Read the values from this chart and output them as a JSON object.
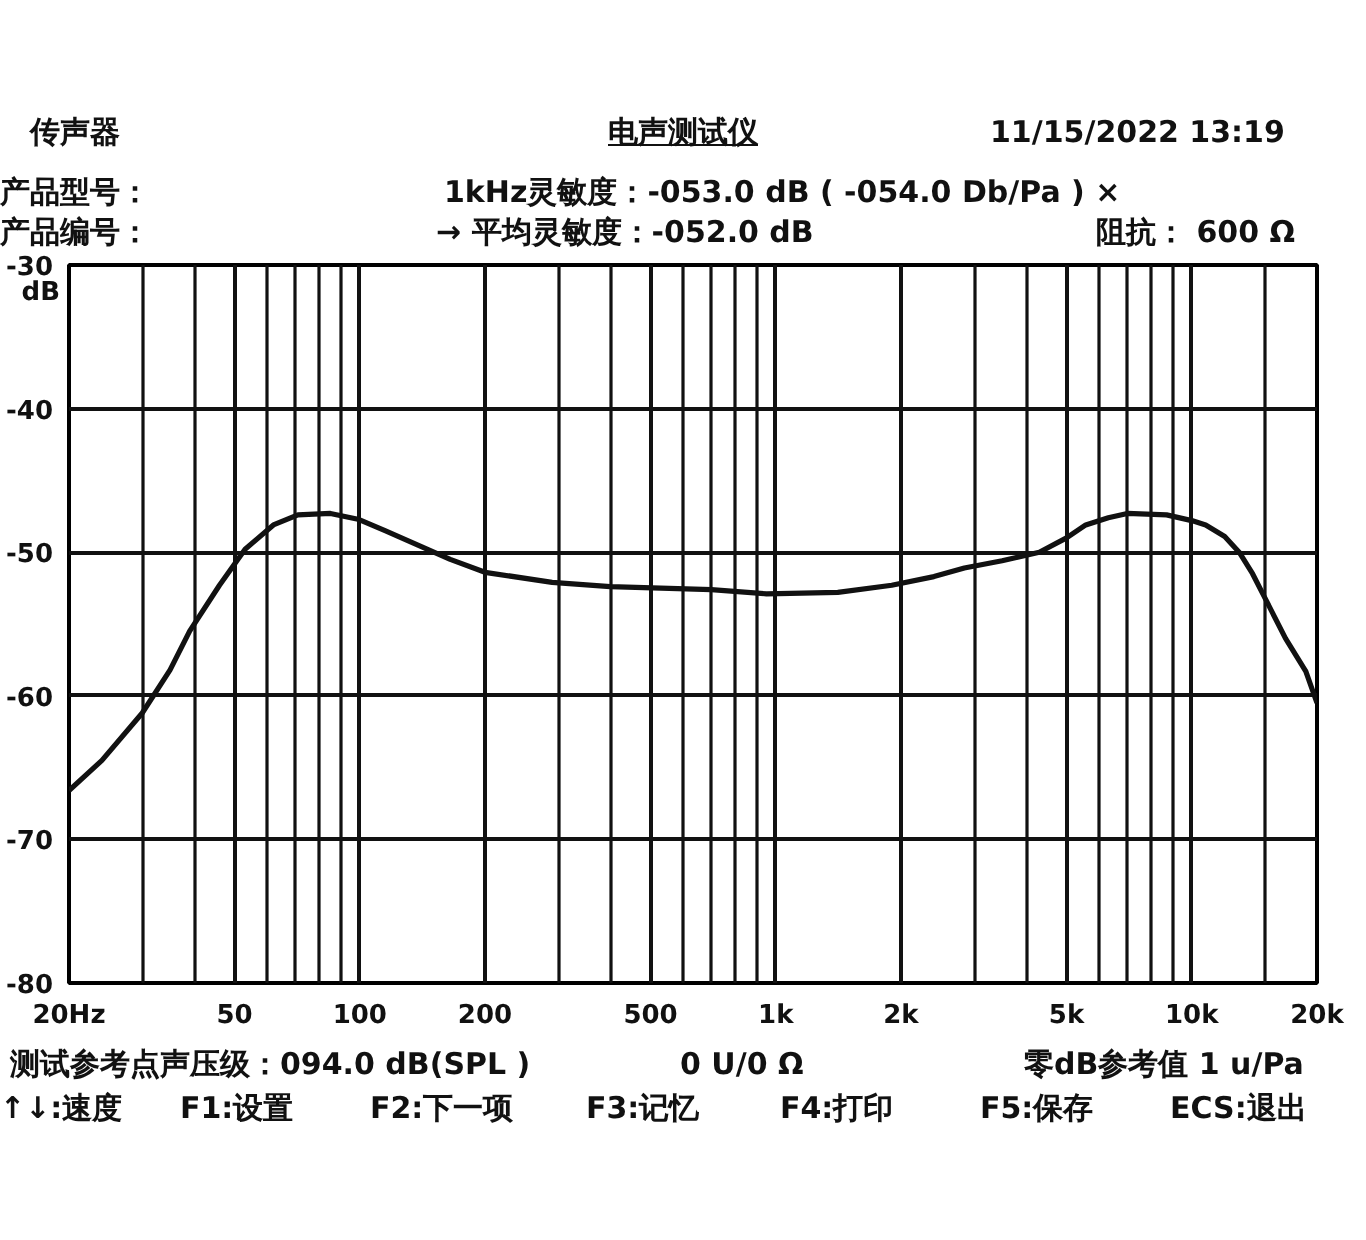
{
  "chart_data": {
    "type": "line",
    "title": "电声测试仪",
    "ylabel": "dB",
    "annotations": [
      "传声器",
      "11/15/2022  13:19",
      "产品型号：",
      "1kHz灵敏度：-053.0 dB ( -054.0 Db/Pa ) ×",
      "产品编号：",
      "→ 平均灵敏度：-052.0 dB",
      "阻抗： 600 Ω",
      "测试参考点声压级：094.0 dB(SPL )",
      "0 U/0 Ω",
      "零dB参考值 1 u/Pa",
      "↑↓:速度",
      "F1:设置",
      "F2:下一项",
      "F3:记忆",
      "F4:打印",
      "F5:保存",
      "ECS:退出"
    ],
    "x": [
      20,
      24,
      30,
      35,
      39,
      46,
      53,
      62,
      71,
      85,
      99,
      115,
      138,
      165,
      200,
      290,
      400,
      700,
      950,
      1410,
      1900,
      2400,
      2840,
      3500,
      4300,
      5000,
      5560,
      6300,
      7000,
      8700,
      10000,
      10800,
      12000,
      13000,
      14000,
      15000,
      16800,
      18800,
      20000
    ],
    "series": [
      {
        "color": "#111111",
        "values": [
          -66.6,
          -64.5,
          -61.2,
          -58.2,
          -55.5,
          -52.3,
          -49.8,
          -48.1,
          -47.4,
          -47.3,
          -47.7,
          -48.5,
          -49.5,
          -50.5,
          -51.4,
          -52.1,
          -52.4,
          -52.6,
          -52.9,
          -52.8,
          -52.3,
          -51.7,
          -51.1,
          -50.6,
          -50.0,
          -49.0,
          -48.1,
          -47.6,
          -47.3,
          -47.4,
          -47.8,
          -48.1,
          -48.9,
          -50.0,
          -51.5,
          -53.2,
          -56.0,
          -58.3,
          -60.5
        ]
      }
    ],
    "xlim": [
      20,
      20000
    ],
    "ylim": [
      -80,
      -30
    ],
    "xticks": [
      {
        "value": 20,
        "label": "20Hz"
      },
      {
        "value": 30,
        "label": null
      },
      {
        "value": 40,
        "label": null
      },
      50,
      {
        "value": 60,
        "label": null
      },
      {
        "value": 70,
        "label": null
      },
      {
        "value": 80,
        "label": null
      },
      {
        "value": 90,
        "label": null
      },
      100,
      200,
      {
        "value": 300,
        "label": null
      },
      {
        "value": 400,
        "label": null
      },
      500,
      {
        "value": 600,
        "label": null
      },
      {
        "value": 700,
        "label": null
      },
      {
        "value": 800,
        "label": null
      },
      {
        "value": 900,
        "label": null
      },
      {
        "value": 1000,
        "label": "1k"
      },
      {
        "value": 2000,
        "label": "2k"
      },
      {
        "value": 3000,
        "label": null
      },
      {
        "value": 4000,
        "label": null
      },
      {
        "value": 5000,
        "label": "5k"
      },
      {
        "value": 6000,
        "label": null
      },
      {
        "value": 7000,
        "label": null
      },
      {
        "value": 8000,
        "label": null
      },
      {
        "value": 9000,
        "label": null
      },
      {
        "value": 10000,
        "label": "10k"
      },
      {
        "value": 15000,
        "label": null
      },
      {
        "value": 20000,
        "label": "20k"
      }
    ],
    "yticks": [
      -80,
      -70,
      -60,
      -50,
      -40,
      -30
    ],
    "grid": true,
    "log": "x",
    "line_style": "solid"
  }
}
